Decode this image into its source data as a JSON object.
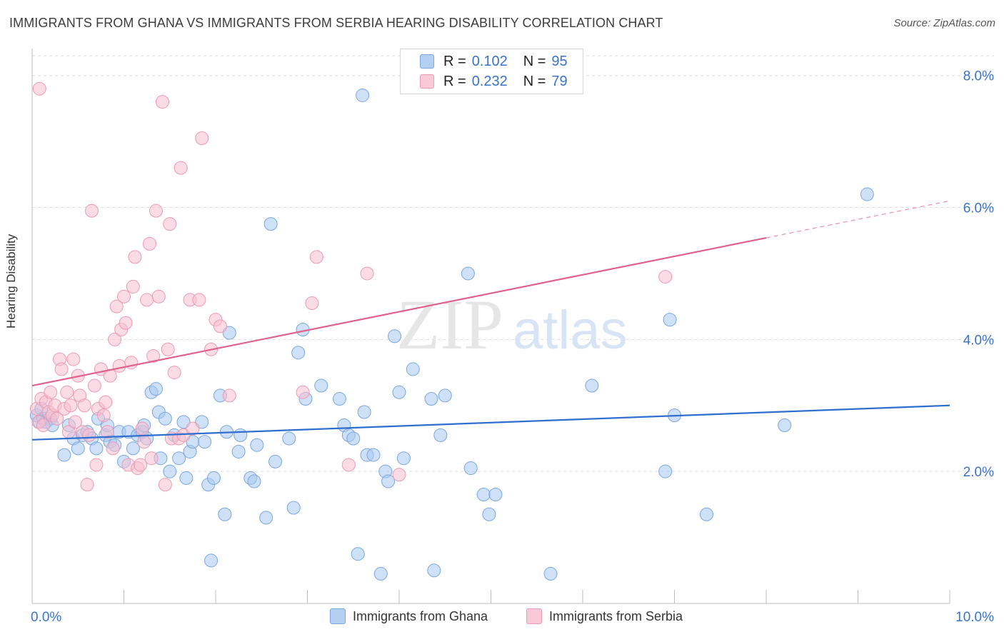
{
  "title": "IMMIGRANTS FROM GHANA VS IMMIGRANTS FROM SERBIA HEARING DISABILITY CORRELATION CHART",
  "source": "Source: ZipAtlas.com",
  "watermark": {
    "zip": "ZIP",
    "atlas": "atlas"
  },
  "colors": {
    "ghana_fill": "#a8c8f0",
    "ghana_stroke": "#7aa6dc",
    "ghana_line": "#2f6fcf",
    "serbia_fill": "#f7bfd0",
    "serbia_stroke": "#eb9ab3",
    "serbia_line": "#e0628c",
    "axis_label": "#3a73c8",
    "grid": "#dcdcdc"
  },
  "legend": {
    "rows": [
      {
        "r_label": "R =",
        "r_value": "0.102",
        "n_label": "N =",
        "n_value": "95"
      },
      {
        "r_label": "R =",
        "r_value": "0.232",
        "n_label": "N =",
        "n_value": "79"
      }
    ]
  },
  "chart_data": {
    "type": "scatter",
    "title": "IMMIGRANTS FROM GHANA VS IMMIGRANTS FROM SERBIA HEARING DISABILITY CORRELATION CHART",
    "xlabel": "",
    "ylabel": "Hearing Disability",
    "xlim": [
      0,
      10
    ],
    "ylim": [
      0,
      8.3
    ],
    "x_tick_labels": [
      "0.0%",
      "10.0%"
    ],
    "y_ticks": [
      2,
      4,
      6,
      8
    ],
    "y_tick_labels": [
      "2.0%",
      "4.0%",
      "6.0%",
      "8.0%"
    ],
    "grid": "horizontal dashed",
    "legend_position": "top-center",
    "series": [
      {
        "name": "Immigrants from Ghana",
        "color": "#a8c8f0",
        "R": 0.102,
        "N": 95,
        "trend": {
          "x": [
            0,
            10
          ],
          "y": [
            2.48,
            3.0
          ],
          "dashed_from": null
        },
        "points": [
          [
            0.05,
            2.85
          ],
          [
            0.08,
            2.75
          ],
          [
            0.1,
            2.95
          ],
          [
            0.12,
            2.8
          ],
          [
            0.15,
            2.75
          ],
          [
            0.2,
            2.8
          ],
          [
            0.22,
            2.7
          ],
          [
            0.35,
            2.25
          ],
          [
            0.4,
            2.7
          ],
          [
            0.45,
            2.5
          ],
          [
            0.5,
            2.35
          ],
          [
            0.55,
            2.55
          ],
          [
            0.6,
            2.6
          ],
          [
            0.65,
            2.5
          ],
          [
            0.7,
            2.35
          ],
          [
            0.72,
            2.8
          ],
          [
            0.8,
            2.55
          ],
          [
            0.82,
            2.7
          ],
          [
            0.85,
            2.45
          ],
          [
            0.9,
            2.4
          ],
          [
            0.95,
            2.6
          ],
          [
            1.0,
            2.15
          ],
          [
            1.05,
            2.6
          ],
          [
            1.1,
            2.35
          ],
          [
            1.15,
            2.55
          ],
          [
            1.2,
            2.6
          ],
          [
            1.22,
            2.7
          ],
          [
            1.25,
            2.5
          ],
          [
            1.3,
            3.2
          ],
          [
            1.35,
            3.25
          ],
          [
            1.38,
            2.9
          ],
          [
            1.4,
            2.2
          ],
          [
            1.45,
            2.8
          ],
          [
            1.5,
            2.0
          ],
          [
            1.55,
            2.55
          ],
          [
            1.6,
            2.2
          ],
          [
            1.65,
            2.75
          ],
          [
            1.68,
            1.9
          ],
          [
            1.72,
            2.3
          ],
          [
            1.75,
            2.45
          ],
          [
            1.85,
            2.75
          ],
          [
            1.88,
            2.45
          ],
          [
            1.92,
            1.8
          ],
          [
            1.95,
            0.65
          ],
          [
            1.98,
            1.9
          ],
          [
            2.05,
            3.15
          ],
          [
            2.1,
            1.35
          ],
          [
            2.12,
            2.6
          ],
          [
            2.15,
            4.1
          ],
          [
            2.25,
            2.3
          ],
          [
            2.27,
            2.55
          ],
          [
            2.38,
            1.9
          ],
          [
            2.42,
            1.85
          ],
          [
            2.45,
            2.4
          ],
          [
            2.55,
            1.3
          ],
          [
            2.6,
            5.75
          ],
          [
            2.65,
            2.15
          ],
          [
            2.8,
            2.5
          ],
          [
            2.85,
            1.45
          ],
          [
            2.9,
            3.8
          ],
          [
            2.95,
            4.15
          ],
          [
            2.98,
            3.1
          ],
          [
            3.15,
            3.3
          ],
          [
            3.35,
            3.1
          ],
          [
            3.4,
            2.7
          ],
          [
            3.45,
            2.55
          ],
          [
            3.5,
            2.5
          ],
          [
            3.55,
            0.75
          ],
          [
            3.6,
            7.7
          ],
          [
            3.62,
            2.9
          ],
          [
            3.65,
            2.25
          ],
          [
            3.72,
            2.25
          ],
          [
            3.8,
            0.45
          ],
          [
            3.85,
            2.0
          ],
          [
            3.88,
            1.85
          ],
          [
            3.95,
            4.05
          ],
          [
            4.0,
            3.2
          ],
          [
            4.05,
            2.2
          ],
          [
            4.15,
            3.55
          ],
          [
            4.35,
            3.1
          ],
          [
            4.38,
            0.5
          ],
          [
            4.45,
            2.55
          ],
          [
            4.5,
            3.15
          ],
          [
            4.75,
            5.0
          ],
          [
            4.78,
            2.05
          ],
          [
            4.92,
            1.65
          ],
          [
            4.98,
            1.35
          ],
          [
            5.05,
            1.65
          ],
          [
            5.65,
            0.45
          ],
          [
            6.1,
            3.3
          ],
          [
            6.9,
            2.0
          ],
          [
            6.95,
            4.3
          ],
          [
            7.0,
            2.85
          ],
          [
            7.35,
            1.35
          ],
          [
            8.2,
            2.7
          ],
          [
            9.1,
            6.2
          ]
        ]
      },
      {
        "name": "Immigrants from Serbia",
        "color": "#f7bfd0",
        "R": 0.232,
        "N": 79,
        "trend": {
          "x": [
            0,
            10
          ],
          "y": [
            3.3,
            6.1
          ],
          "dashed_from": 8.0
        },
        "points": [
          [
            0.05,
            2.95
          ],
          [
            0.07,
            2.75
          ],
          [
            0.1,
            3.1
          ],
          [
            0.12,
            2.7
          ],
          [
            0.15,
            3.05
          ],
          [
            0.18,
            2.9
          ],
          [
            0.2,
            3.2
          ],
          [
            0.22,
            2.85
          ],
          [
            0.25,
            3.0
          ],
          [
            0.27,
            2.8
          ],
          [
            0.3,
            3.7
          ],
          [
            0.32,
            3.55
          ],
          [
            0.35,
            2.95
          ],
          [
            0.38,
            3.2
          ],
          [
            0.4,
            2.6
          ],
          [
            0.42,
            3.0
          ],
          [
            0.45,
            3.7
          ],
          [
            0.47,
            2.75
          ],
          [
            0.5,
            3.45
          ],
          [
            0.52,
            3.15
          ],
          [
            0.55,
            2.6
          ],
          [
            0.57,
            3.0
          ],
          [
            0.6,
            1.8
          ],
          [
            0.62,
            2.55
          ],
          [
            0.65,
            5.95
          ],
          [
            0.68,
            3.3
          ],
          [
            0.7,
            2.1
          ],
          [
            0.72,
            2.95
          ],
          [
            0.75,
            3.55
          ],
          [
            0.78,
            2.85
          ],
          [
            0.8,
            3.05
          ],
          [
            0.82,
            2.6
          ],
          [
            0.85,
            3.45
          ],
          [
            0.88,
            2.35
          ],
          [
            0.9,
            4.0
          ],
          [
            0.92,
            4.5
          ],
          [
            0.95,
            3.6
          ],
          [
            0.97,
            4.15
          ],
          [
            1.0,
            4.65
          ],
          [
            1.02,
            4.25
          ],
          [
            1.05,
            2.1
          ],
          [
            1.08,
            3.65
          ],
          [
            1.1,
            4.8
          ],
          [
            1.12,
            5.25
          ],
          [
            1.15,
            2.05
          ],
          [
            1.18,
            2.1
          ],
          [
            1.2,
            2.65
          ],
          [
            1.22,
            2.45
          ],
          [
            1.25,
            4.6
          ],
          [
            1.28,
            5.45
          ],
          [
            1.3,
            2.2
          ],
          [
            1.32,
            3.75
          ],
          [
            1.35,
            5.95
          ],
          [
            1.38,
            4.65
          ],
          [
            1.42,
            7.6
          ],
          [
            1.45,
            1.8
          ],
          [
            1.48,
            3.85
          ],
          [
            1.5,
            5.75
          ],
          [
            1.52,
            2.5
          ],
          [
            1.55,
            3.5
          ],
          [
            1.6,
            2.5
          ],
          [
            1.62,
            6.6
          ],
          [
            1.65,
            2.55
          ],
          [
            1.72,
            4.6
          ],
          [
            1.75,
            2.65
          ],
          [
            1.82,
            4.6
          ],
          [
            1.85,
            7.05
          ],
          [
            1.95,
            3.85
          ],
          [
            2.0,
            4.3
          ],
          [
            2.05,
            4.2
          ],
          [
            2.15,
            3.15
          ],
          [
            2.95,
            3.2
          ],
          [
            3.05,
            4.55
          ],
          [
            3.1,
            5.25
          ],
          [
            3.45,
            2.1
          ],
          [
            3.65,
            5.0
          ],
          [
            4.0,
            1.95
          ],
          [
            6.9,
            4.95
          ],
          [
            0.08,
            7.8
          ]
        ]
      }
    ]
  },
  "bottom_legend": {
    "ghana_label": "Immigrants from Ghana",
    "serbia_label": "Immigrants from Serbia"
  }
}
